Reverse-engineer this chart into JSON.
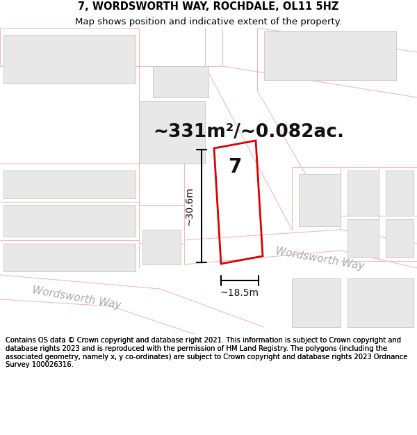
{
  "title_line1": "7, WORDSWORTH WAY, ROCHDALE, OL11 5HZ",
  "title_line2": "Map shows position and indicative extent of the property.",
  "area_text": "~331m²/~0.082ac.",
  "label_7": "7",
  "dim_height": "~30.6m",
  "dim_width": "~18.5m",
  "street_label1": "Wordsworth Way",
  "street_label2": "Wordsworth Way",
  "footer_text": "Contains OS data © Crown copyright and database right 2021. This information is subject to Crown copyright and database rights 2023 and is reproduced with the permission of HM Land Registry. The polygons (including the associated geometry, namely x, y co-ordinates) are subject to Crown copyright and database rights 2023 Ordnance Survey 100026316.",
  "bg_color": "#ffffff",
  "map_bg": "#ffffff",
  "road_color": "#f5b8b8",
  "building_color": "#e8e8e8",
  "building_edge": "#cccccc",
  "plot_color": "#dd0000",
  "dim_color": "#000000",
  "title_fontsize": 10.5,
  "subtitle_fontsize": 9.5,
  "area_fontsize": 19,
  "label_fontsize": 20,
  "dim_fontsize": 10,
  "street_fontsize": 11,
  "footer_fontsize": 7.2
}
